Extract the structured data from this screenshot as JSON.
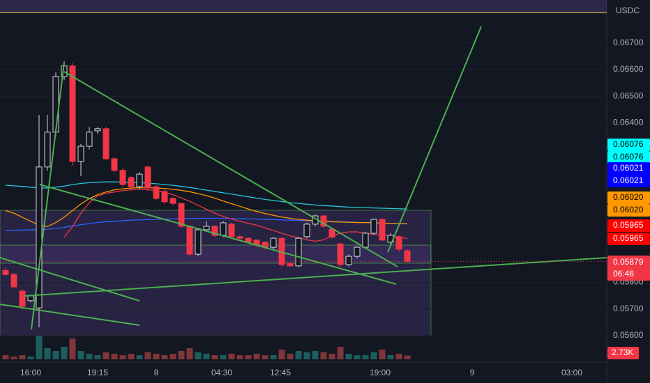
{
  "chart_data": {
    "type": "candlestick",
    "unit": "USDC",
    "ylim": [
      0.05474,
      0.06862
    ],
    "yticks": [
      {
        "value": 0.067,
        "label": "0.06700"
      },
      {
        "value": 0.066,
        "label": "0.06600"
      },
      {
        "value": 0.065,
        "label": "0.06500"
      },
      {
        "value": 0.064,
        "label": "0.06400"
      },
      {
        "value": 0.058,
        "label": "0.05800"
      },
      {
        "value": 0.057,
        "label": "0.05700"
      },
      {
        "value": 0.056,
        "label": "0.05600"
      }
    ],
    "time_ticks": [
      "16:00",
      "19:15",
      "8",
      "04:30",
      "12:45",
      "19:00",
      "9",
      "03:00"
    ],
    "alert_line": 0.06815,
    "candles": {
      "open": [
        0.05845,
        0.0583,
        0.05767,
        0.05731,
        0.05704,
        0.06234,
        0.06365,
        0.06574,
        0.06614,
        0.06255,
        0.06312,
        0.0637,
        0.06378,
        0.06265,
        0.06221,
        0.06194,
        0.0616,
        0.06234,
        0.0616,
        0.06142,
        0.06116,
        0.06097,
        0.06011,
        0.05906,
        0.05998,
        0.06011,
        0.05977,
        0.06019,
        0.05972,
        0.05966,
        0.05959,
        0.05951,
        0.05932,
        0.05966,
        0.05872,
        0.05862,
        0.05972,
        0.06019,
        0.0605,
        0.06,
        0.05945,
        0.05867,
        0.05898,
        0.05932,
        0.05985,
        0.06037,
        0.05951,
        0.05972,
        0.05919
      ],
      "high": [
        0.05855,
        0.05835,
        0.05775,
        0.05752,
        0.0643,
        0.0643,
        0.0659,
        0.06632,
        0.06625,
        0.0632,
        0.06385,
        0.06385,
        0.06385,
        0.0627,
        0.0623,
        0.062,
        0.06215,
        0.0624,
        0.06165,
        0.0615,
        0.0612,
        0.061,
        0.06015,
        0.06005,
        0.0603,
        0.06015,
        0.0603,
        0.06025,
        0.05978,
        0.0597,
        0.05962,
        0.05955,
        0.0597,
        0.0597,
        0.05876,
        0.0597,
        0.06025,
        0.06055,
        0.06055,
        0.06005,
        0.0595,
        0.05905,
        0.05935,
        0.0599,
        0.0604,
        0.0604,
        0.05985,
        0.05978,
        0.05925
      ],
      "low": [
        0.05825,
        0.0578,
        0.05697,
        0.05725,
        0.05631,
        0.0622,
        0.0635,
        0.0656,
        0.0624,
        0.062,
        0.063,
        0.0636,
        0.0626,
        0.06215,
        0.0616,
        0.0615,
        0.0615,
        0.06145,
        0.0611,
        0.06095,
        0.0609,
        0.06005,
        0.059,
        0.059,
        0.0599,
        0.0597,
        0.0597,
        0.05965,
        0.0596,
        0.05945,
        0.05935,
        0.05925,
        0.05925,
        0.0586,
        0.0586,
        0.05858,
        0.05965,
        0.0601,
        0.06005,
        0.05965,
        0.0586,
        0.0586,
        0.0589,
        0.05925,
        0.0598,
        0.05955,
        0.05945,
        0.05915,
        0.05875
      ],
      "close": [
        0.0583,
        0.05783,
        0.0571,
        0.05749,
        0.06234,
        0.06365,
        0.06574,
        0.06614,
        0.06255,
        0.06312,
        0.06365,
        0.06378,
        0.06265,
        0.06221,
        0.06168,
        0.0616,
        0.06207,
        0.06155,
        0.06116,
        0.06103,
        0.06097,
        0.06011,
        0.05906,
        0.05998,
        0.06011,
        0.05977,
        0.06024,
        0.05972,
        0.05966,
        0.05951,
        0.0594,
        0.05932,
        0.05966,
        0.05867,
        0.05862,
        0.05966,
        0.06019,
        0.0605,
        0.06011,
        0.0597,
        0.05867,
        0.05898,
        0.05932,
        0.05985,
        0.06037,
        0.05959,
        0.05977,
        0.05925,
        0.05879
      ],
      "up_color": "#d1d4dc",
      "down_color": "#f23645"
    },
    "close_label": "0.05879",
    "countdown": "06:46",
    "volume": [
      3,
      2,
      3,
      2,
      17,
      8,
      6,
      9,
      15,
      6,
      4,
      3,
      5,
      4,
      3,
      4,
      3,
      5,
      4,
      3,
      4,
      6,
      8,
      5,
      4,
      3,
      3,
      4,
      3,
      3,
      4,
      3,
      3,
      7,
      4,
      6,
      5,
      6,
      5,
      4,
      9,
      4,
      3,
      3,
      5,
      7,
      3,
      4,
      2.73
    ],
    "volume_lim": [
      0,
      100
    ],
    "volume_label": "2.73K",
    "series": [
      {
        "color": "#26c6da",
        "last_label": "0.06076",
        "badge_color": "#00ffff",
        "badge_text": "#000000",
        "values": [
          0.06165,
          0.06163,
          0.06161,
          0.06158,
          0.06155,
          0.06155,
          0.06158,
          0.06162,
          0.06168,
          0.06172,
          0.06175,
          0.06177,
          0.06178,
          0.06178,
          0.06177,
          0.06176,
          0.06175,
          0.06173,
          0.06171,
          0.06168,
          0.06165,
          0.06161,
          0.06157,
          0.06152,
          0.06147,
          0.06142,
          0.06137,
          0.06132,
          0.06127,
          0.06122,
          0.06117,
          0.06112,
          0.06108,
          0.06104,
          0.061,
          0.06097,
          0.06094,
          0.06091,
          0.06089,
          0.06087,
          0.06085,
          0.06083,
          0.06082,
          0.06081,
          0.0608,
          0.06079,
          0.06078,
          0.06077,
          0.06076
        ]
      },
      {
        "color": "#2962ff",
        "last_label": "0.06021",
        "badge_color": "#0000ff",
        "badge_text": "#ffffff",
        "values": [
          0.05995,
          0.05996,
          0.05997,
          0.05998,
          0.05999,
          0.06,
          0.06003,
          0.06007,
          0.06012,
          0.06017,
          0.06021,
          0.06025,
          0.06028,
          0.0603,
          0.06032,
          0.06034,
          0.06035,
          0.06036,
          0.06037,
          0.06038,
          0.06039,
          0.0604,
          0.0604,
          0.06041,
          0.06041,
          0.06041,
          0.06041,
          0.0604,
          0.0604,
          0.06039,
          0.06038,
          0.06037,
          0.06036,
          0.06035,
          0.06034,
          0.06033,
          0.06032,
          0.06031,
          0.0603,
          0.06029,
          0.06028,
          0.06027,
          0.06026,
          0.06025,
          0.06024,
          0.06023,
          0.06022,
          0.06021,
          0.06021
        ]
      },
      {
        "color": "#ff9800",
        "last_label": "0.06020",
        "badge_color": "#ff9800",
        "badge_text": "#000000",
        "values": [
          0.0607,
          0.0606,
          0.06045,
          0.0603,
          0.06015,
          0.0601,
          0.06025,
          0.06045,
          0.0607,
          0.06095,
          0.06115,
          0.0613,
          0.0614,
          0.06148,
          0.06152,
          0.06155,
          0.06156,
          0.06156,
          0.06155,
          0.06153,
          0.0615,
          0.06146,
          0.06141,
          0.06134,
          0.06126,
          0.06117,
          0.06106,
          0.06096,
          0.06086,
          0.06076,
          0.06067,
          0.06059,
          0.06052,
          0.06046,
          0.06041,
          0.06037,
          0.06034,
          0.06031,
          0.06029,
          0.06028,
          0.06027,
          0.06026,
          0.06025,
          0.06025,
          0.06024,
          0.06023,
          0.06022,
          0.06021,
          0.0602
        ]
      },
      {
        "color": "#f23645",
        "last_label": "0.05965",
        "badge_color": "#ff0000",
        "badge_text": "#ffffff",
        "values": [
          null,
          null,
          null,
          null,
          null,
          null,
          null,
          0.0597,
          0.0601,
          0.0606,
          0.061,
          0.06125,
          0.06135,
          0.0614,
          0.06145,
          0.06148,
          0.0615,
          0.06148,
          0.06145,
          0.0614,
          0.0613,
          0.06118,
          0.06105,
          0.0609,
          0.06075,
          0.0606,
          0.06048,
          0.06038,
          0.0603,
          0.06022,
          0.06015,
          0.06005,
          0.05995,
          0.05985,
          0.05975,
          0.05968,
          0.0596,
          0.05955,
          0.0596,
          0.05975,
          0.05985,
          0.0599,
          0.0599,
          0.05985,
          0.0598,
          0.05978,
          0.05975,
          0.0597,
          0.05965
        ]
      }
    ]
  }
}
